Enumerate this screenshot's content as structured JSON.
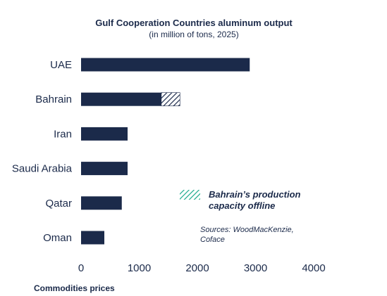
{
  "chart_data": {
    "type": "bar",
    "orientation": "horizontal",
    "title": "Gulf Cooperation Countries aluminum output",
    "subtitle": "(in million of tons, 2025)",
    "categories": [
      "UAE",
      "Bahrain",
      "Iran",
      "Saudi Arabia",
      "Qatar",
      "Oman"
    ],
    "values": [
      2900,
      1380,
      800,
      800,
      700,
      400
    ],
    "offline_capacity": [
      0,
      320,
      0,
      0,
      0,
      0
    ],
    "xlim": [
      0,
      4000
    ],
    "xticks": [
      "0",
      "1000",
      "2000",
      "3000",
      "4000"
    ],
    "grid": false,
    "legend": {
      "position": "right",
      "entries": [
        "Bahrain’s production",
        "capacity offline"
      ]
    },
    "colors": {
      "bar": "#1b2a4a",
      "offline": "#1aa98c"
    }
  },
  "source": [
    "Sources: WoodMacKenzie,",
    "Coface"
  ],
  "footer": "Commodities prices"
}
